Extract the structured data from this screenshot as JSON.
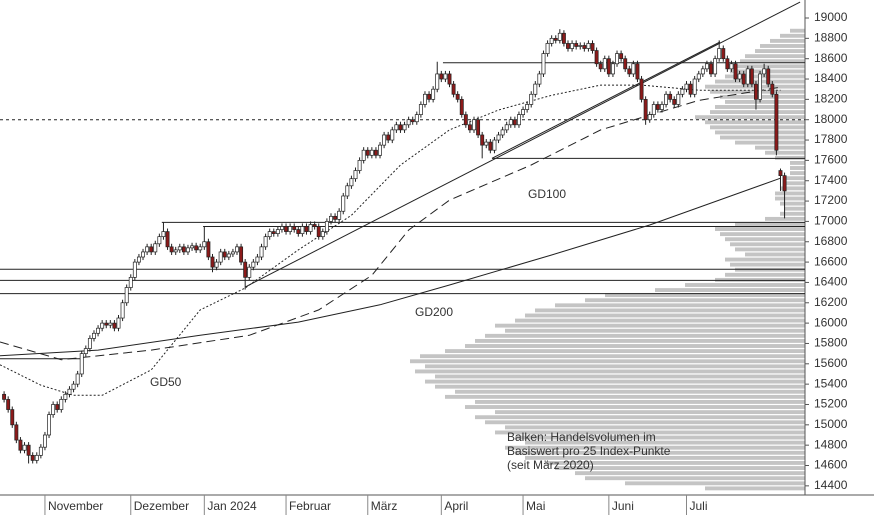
{
  "chart_data": {
    "type": "candlestick",
    "xlim": [
      -1,
      196
    ],
    "ylim": [
      14310,
      19177
    ],
    "yticks": [
      14400,
      14600,
      14800,
      15000,
      15200,
      15400,
      15600,
      15800,
      16000,
      16200,
      16400,
      16600,
      16800,
      17000,
      17200,
      17400,
      17600,
      17800,
      18000,
      18200,
      18400,
      18600,
      18800,
      19000
    ],
    "xticks": [
      {
        "value": 10,
        "label": "November"
      },
      {
        "value": 31,
        "label": "Dezember"
      },
      {
        "value": 49,
        "label": "Jan 2024"
      },
      {
        "value": 69,
        "label": "Februar"
      },
      {
        "value": 89,
        "label": "März"
      },
      {
        "value": 107,
        "label": "April"
      },
      {
        "value": 127,
        "label": "Mai"
      },
      {
        "value": 148,
        "label": "Juni"
      },
      {
        "value": 167,
        "label": "Juli"
      }
    ],
    "up_color": "#ffffff",
    "down_color": "#8b1a1a",
    "open": [
      15300,
      15250,
      15150,
      15000,
      14850,
      14750,
      14800,
      14700,
      14650,
      14700,
      14780,
      14900,
      15100,
      15200,
      15150,
      15250,
      15300,
      15350,
      15400,
      15500,
      15700,
      15750,
      15850,
      15900,
      15950,
      16000,
      15980,
      16000,
      15950,
      16050,
      16200,
      16350,
      16450,
      16600,
      16650,
      16700,
      16750,
      16700,
      16780,
      16850,
      16900,
      16750,
      16700,
      16720,
      16750,
      16700,
      16740,
      16760,
      16720,
      16750,
      16800,
      16650,
      16550,
      16600,
      16700,
      16650,
      16680,
      16700,
      16750,
      16600,
      16450,
      16550,
      16600,
      16650,
      16750,
      16850,
      16900,
      16880,
      16920,
      16950,
      16900,
      16950,
      16920,
      16880,
      16950,
      16900,
      16970,
      16950,
      16850,
      16900,
      17000,
      17050,
      17020,
      17100,
      17250,
      17350,
      17420,
      17500,
      17600,
      17700,
      17650,
      17700,
      17650,
      17750,
      17850,
      17800,
      17900,
      17950,
      17900,
      17950,
      18000,
      17980,
      18050,
      18150,
      18250,
      18200,
      18300,
      18450,
      18400,
      18450,
      18350,
      18250,
      18200,
      18050,
      17950,
      17900,
      18000,
      17850,
      17750,
      17780,
      17700,
      17800,
      17850,
      17900,
      17950,
      18000,
      17950,
      18050,
      18100,
      18150,
      18250,
      18350,
      18450,
      18650,
      18750,
      18800,
      18780,
      18850,
      18750,
      18700,
      18750,
      18720,
      18730,
      18700,
      18750,
      18680,
      18550,
      18500,
      18600,
      18450,
      18550,
      18650,
      18600,
      18500,
      18450,
      18550,
      18400,
      18200,
      18000,
      18050,
      18150,
      18100,
      18150,
      18250,
      18200,
      18150,
      18250,
      18300,
      18350,
      18250,
      18400,
      18450,
      18500,
      18550,
      18450,
      18600,
      18700,
      18600,
      18500,
      18550,
      18400,
      18450,
      18350,
      18500,
      18350,
      18200,
      18450,
      18500,
      18350,
      18250,
      17500,
      17450
    ],
    "high": [
      15330,
      15280,
      15180,
      15030,
      14880,
      14830,
      14830,
      14730,
      14730,
      14810,
      14930,
      15130,
      15230,
      15230,
      15280,
      15330,
      15380,
      15430,
      15530,
      15730,
      15780,
      15880,
      15930,
      15980,
      16030,
      16030,
      16030,
      16030,
      16080,
      16230,
      16380,
      16480,
      16630,
      16680,
      16730,
      16780,
      16780,
      16810,
      16880,
      16990,
      16930,
      16780,
      16750,
      16780,
      16780,
      16770,
      16790,
      16790,
      16780,
      16950,
      16830,
      16680,
      16630,
      16730,
      16730,
      16710,
      16730,
      16780,
      16780,
      16630,
      16580,
      16630,
      16680,
      16780,
      16880,
      16930,
      16930,
      16950,
      16980,
      16980,
      16980,
      16980,
      16950,
      16980,
      16980,
      17000,
      17000,
      16980,
      16930,
      17030,
      17080,
      17080,
      17130,
      17280,
      17380,
      17450,
      17530,
      17630,
      17730,
      17730,
      17730,
      17730,
      17780,
      17880,
      17880,
      17930,
      17980,
      17980,
      17980,
      18030,
      18030,
      18080,
      18180,
      18280,
      18280,
      18330,
      18570,
      18480,
      18480,
      18480,
      18380,
      18280,
      18230,
      18080,
      17980,
      18030,
      18030,
      17880,
      17810,
      17810,
      17830,
      17880,
      17930,
      17980,
      18030,
      18030,
      18080,
      18130,
      18180,
      18280,
      18380,
      18480,
      18680,
      18780,
      18830,
      18830,
      18890,
      18880,
      18780,
      18780,
      18780,
      18760,
      18760,
      18780,
      18780,
      18710,
      18580,
      18630,
      18630,
      18580,
      18680,
      18680,
      18630,
      18530,
      18580,
      18580,
      18430,
      18230,
      18080,
      18180,
      18180,
      18180,
      18280,
      18280,
      18230,
      18280,
      18330,
      18380,
      18380,
      18430,
      18480,
      18530,
      18580,
      18580,
      18630,
      18780,
      18730,
      18630,
      18580,
      18580,
      18480,
      18480,
      18530,
      18530,
      18380,
      18480,
      18550,
      18530,
      18380,
      18280,
      17520,
      17480
    ],
    "low": [
      15220,
      15120,
      14970,
      14820,
      14720,
      14720,
      14620,
      14620,
      14620,
      14670,
      14750,
      14870,
      15070,
      15120,
      15120,
      15220,
      15270,
      15320,
      15370,
      15470,
      15670,
      15720,
      15820,
      15870,
      15920,
      15950,
      15950,
      15920,
      15920,
      16020,
      16170,
      16320,
      16420,
      16570,
      16620,
      16670,
      16670,
      16670,
      16750,
      16820,
      16720,
      16670,
      16670,
      16690,
      16670,
      16670,
      16710,
      16690,
      16690,
      16720,
      16620,
      16500,
      16520,
      16570,
      16620,
      16620,
      16650,
      16670,
      16570,
      16330,
      16420,
      16520,
      16570,
      16620,
      16720,
      16820,
      16850,
      16850,
      16890,
      16870,
      16870,
      16890,
      16850,
      16850,
      16870,
      16870,
      16920,
      16820,
      16820,
      16870,
      16970,
      16990,
      16990,
      17070,
      17220,
      17320,
      17390,
      17470,
      17570,
      17620,
      17620,
      17620,
      17620,
      17720,
      17770,
      17770,
      17870,
      17870,
      17870,
      17920,
      17950,
      17950,
      18020,
      18120,
      18170,
      18170,
      18270,
      18370,
      18370,
      18320,
      18220,
      18170,
      18020,
      17920,
      17870,
      17870,
      17820,
      17620,
      17720,
      17670,
      17670,
      17770,
      17820,
      17870,
      17920,
      17920,
      17920,
      18020,
      18070,
      18120,
      18220,
      18320,
      18420,
      18620,
      18720,
      18750,
      18750,
      18720,
      18670,
      18670,
      18690,
      18690,
      18670,
      18670,
      18650,
      18520,
      18470,
      18470,
      18420,
      18420,
      18520,
      18570,
      18470,
      18420,
      18420,
      18370,
      18170,
      17950,
      17970,
      18020,
      18070,
      18070,
      18120,
      18170,
      18120,
      18120,
      18220,
      18270,
      18220,
      18220,
      18370,
      18420,
      18470,
      18420,
      18420,
      18570,
      18570,
      18470,
      18470,
      18370,
      18370,
      18320,
      18320,
      18320,
      18100,
      18170,
      18420,
      18320,
      18220,
      17650,
      17300,
      17030
    ],
    "close": [
      15250,
      15150,
      15000,
      14850,
      14750,
      14800,
      14700,
      14650,
      14700,
      14780,
      14900,
      15100,
      15200,
      15150,
      15250,
      15300,
      15350,
      15400,
      15500,
      15700,
      15750,
      15850,
      15900,
      15950,
      16000,
      15980,
      16000,
      15950,
      16050,
      16200,
      16350,
      16450,
      16600,
      16650,
      16700,
      16750,
      16700,
      16780,
      16850,
      16900,
      16750,
      16700,
      16720,
      16750,
      16700,
      16740,
      16760,
      16720,
      16750,
      16800,
      16650,
      16550,
      16600,
      16700,
      16650,
      16680,
      16700,
      16750,
      16600,
      16450,
      16550,
      16600,
      16650,
      16750,
      16850,
      16900,
      16880,
      16920,
      16950,
      16900,
      16950,
      16920,
      16880,
      16950,
      16900,
      16970,
      16950,
      16850,
      16900,
      17000,
      17050,
      17020,
      17100,
      17250,
      17350,
      17420,
      17500,
      17600,
      17700,
      17650,
      17700,
      17650,
      17750,
      17850,
      17800,
      17900,
      17950,
      17900,
      17950,
      18000,
      17980,
      18050,
      18150,
      18250,
      18200,
      18300,
      18450,
      18400,
      18450,
      18350,
      18250,
      18200,
      18050,
      17950,
      17900,
      18000,
      17850,
      17750,
      17780,
      17700,
      17800,
      17850,
      17900,
      17950,
      18000,
      17950,
      18050,
      18100,
      18150,
      18250,
      18350,
      18450,
      18650,
      18750,
      18800,
      18780,
      18850,
      18750,
      18700,
      18750,
      18720,
      18730,
      18700,
      18750,
      18680,
      18550,
      18500,
      18600,
      18450,
      18550,
      18650,
      18600,
      18500,
      18450,
      18550,
      18400,
      18200,
      18000,
      18050,
      18150,
      18100,
      18150,
      18250,
      18200,
      18150,
      18250,
      18300,
      18350,
      18250,
      18400,
      18450,
      18500,
      18550,
      18450,
      18600,
      18700,
      18600,
      18500,
      18550,
      18400,
      18450,
      18350,
      18500,
      18350,
      18200,
      18450,
      18500,
      18350,
      18250,
      17700,
      17450,
      17300
    ],
    "moving_averages": [
      {
        "name": "GD50",
        "dash": "2,2",
        "x": [
          -1,
          9,
          17,
          24,
          36,
          48,
          59,
          72,
          85,
          97,
          109,
          121,
          134,
          146,
          156,
          170,
          190
        ],
        "values": [
          15590,
          15390,
          15290,
          15290,
          15540,
          16130,
          16345,
          16720,
          17060,
          17555,
          17900,
          18095,
          18240,
          18340,
          18340,
          18290,
          18290
        ]
      },
      {
        "name": "GD100",
        "dash": "9,5",
        "x": [
          -1,
          14,
          36,
          60,
          77,
          90,
          99,
          109,
          129,
          146,
          158,
          170,
          190
        ],
        "values": [
          15814,
          15640,
          15735,
          15880,
          16130,
          16470,
          16915,
          17210,
          17555,
          17900,
          18045,
          18190,
          18320
        ]
      },
      {
        "name": "GD200",
        "dash": "none",
        "x": [
          -1,
          23,
          48,
          72,
          92,
          109,
          134,
          158,
          175,
          190
        ],
        "values": [
          15680,
          15735,
          15880,
          16010,
          16180,
          16375,
          16670,
          16965,
          17210,
          17425
        ]
      }
    ],
    "levels": [
      {
        "value": 18560,
        "from": 107.4,
        "dash": "none"
      },
      {
        "value": 18000,
        "from": -1,
        "dash": "3,3"
      },
      {
        "value": 17620,
        "from": 119.4,
        "dash": "none"
      },
      {
        "value": 16990,
        "from": 38.6,
        "dash": "none"
      },
      {
        "value": 16950,
        "from": 48.7,
        "dash": "none"
      },
      {
        "value": 16530,
        "from": -1,
        "dash": "none"
      },
      {
        "value": 16420,
        "from": -1,
        "dash": "none"
      },
      {
        "value": 16290,
        "from": -1,
        "dash": "none"
      },
      {
        "value": 15650,
        "from": -1,
        "to": 18.6,
        "dash": "none"
      }
    ],
    "trendlines": [
      {
        "x": [
          59,
          194.8
        ],
        "values": [
          16355,
          19157
        ]
      },
      {
        "x": [
          119.4,
          175.2
        ],
        "values": [
          17620,
          18764
        ]
      }
    ],
    "profile": {
      "color": "#c4c4c4",
      "bins": [
        14350,
        14400,
        14450,
        14500,
        14550,
        14600,
        14650,
        14700,
        14750,
        14800,
        14850,
        14900,
        14950,
        15000,
        15050,
        15100,
        15150,
        15200,
        15250,
        15300,
        15350,
        15400,
        15450,
        15500,
        15550,
        15600,
        15650,
        15700,
        15750,
        15800,
        15850,
        15900,
        15950,
        16000,
        16050,
        16100,
        16150,
        16200,
        16250,
        16300,
        16350,
        16400,
        16450,
        16500,
        16550,
        16600,
        16650,
        16700,
        16750,
        16800,
        16850,
        16900,
        16950,
        17000,
        17050,
        17100,
        17150,
        17200,
        17250,
        17300,
        17350,
        17400,
        17450,
        17500,
        17550,
        17600,
        17650,
        17700,
        17750,
        17800,
        17850,
        17900,
        17950,
        18000,
        18050,
        18100,
        18150,
        18200,
        18250,
        18300,
        18350,
        18400,
        18450,
        18500,
        18550,
        18600,
        18650,
        18700,
        18750,
        18800,
        18850,
        18900
      ],
      "volumes": [
        100,
        180,
        220,
        230,
        250,
        260,
        280,
        290,
        300,
        280,
        290,
        310,
        300,
        320,
        330,
        310,
        340,
        330,
        360,
        350,
        370,
        380,
        370,
        390,
        380,
        395,
        385,
        360,
        340,
        330,
        320,
        300,
        310,
        290,
        280,
        270,
        250,
        220,
        200,
        150,
        120,
        90,
        80,
        70,
        75,
        80,
        60,
        70,
        75,
        80,
        85,
        90,
        70,
        40,
        25,
        20,
        25,
        30,
        30,
        25,
        20,
        20,
        15,
        15,
        15,
        30,
        40,
        50,
        70,
        85,
        90,
        95,
        100,
        110,
        95,
        90,
        80,
        85,
        95,
        100,
        90,
        80,
        75,
        70,
        65,
        60,
        50,
        45,
        35,
        25,
        15
      ]
    },
    "note": [
      "Balken: Handelsvolumen im",
      "Basiswert pro 25 Index-Punkte",
      "(seit März 2020)"
    ]
  }
}
